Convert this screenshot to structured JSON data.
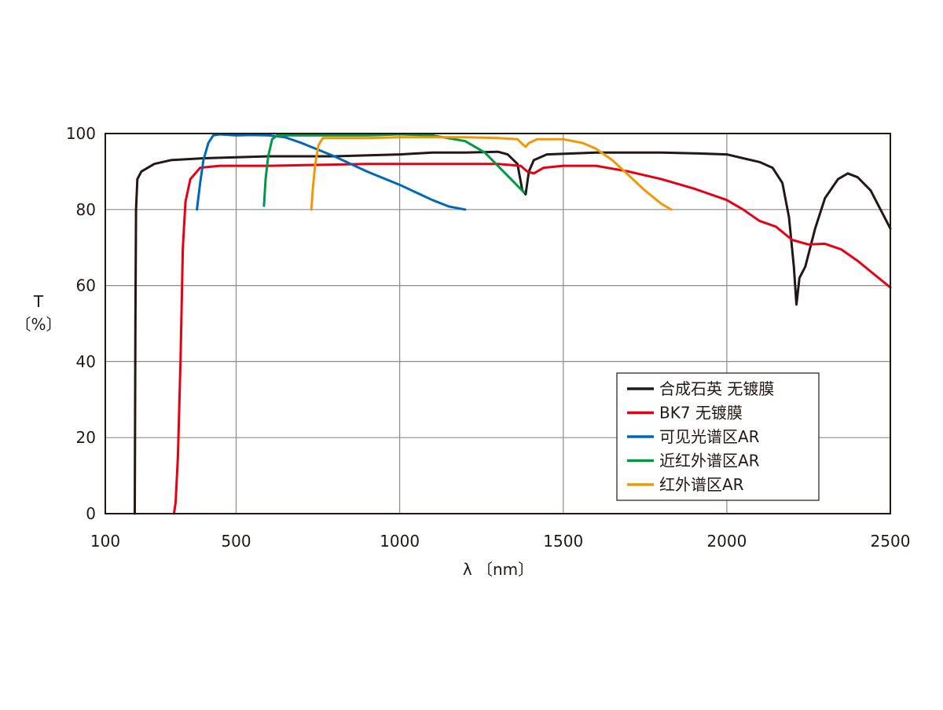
{
  "chart_data": {
    "type": "line",
    "title": "",
    "xlabel": "λ 〔nm〕",
    "ylabel_top": "T",
    "ylabel_bottom": "〔%〕",
    "xlim": [
      100,
      2500
    ],
    "ylim": [
      0,
      100
    ],
    "x_ticks": [
      100,
      500,
      1000,
      1500,
      2000,
      2500
    ],
    "y_ticks": [
      0,
      20,
      40,
      60,
      80,
      100
    ],
    "grid": true,
    "legend_position": "lower-right",
    "series": [
      {
        "name": "合成石英 无镀膜",
        "color": "#231815",
        "points": [
          [
            190,
            0
          ],
          [
            192,
            50
          ],
          [
            194,
            80
          ],
          [
            198,
            88
          ],
          [
            210,
            90
          ],
          [
            250,
            92
          ],
          [
            300,
            93
          ],
          [
            400,
            93.5
          ],
          [
            600,
            94
          ],
          [
            800,
            94
          ],
          [
            1000,
            94.5
          ],
          [
            1100,
            95
          ],
          [
            1200,
            95
          ],
          [
            1300,
            95.2
          ],
          [
            1330,
            94.5
          ],
          [
            1360,
            92
          ],
          [
            1375,
            85
          ],
          [
            1385,
            84
          ],
          [
            1395,
            90
          ],
          [
            1410,
            93
          ],
          [
            1450,
            94.5
          ],
          [
            1600,
            95
          ],
          [
            1800,
            95
          ],
          [
            1900,
            94.8
          ],
          [
            2000,
            94.5
          ],
          [
            2050,
            93.5
          ],
          [
            2100,
            92.5
          ],
          [
            2140,
            91
          ],
          [
            2170,
            87
          ],
          [
            2190,
            78
          ],
          [
            2205,
            65
          ],
          [
            2213,
            55
          ],
          [
            2222,
            62
          ],
          [
            2240,
            65
          ],
          [
            2270,
            75
          ],
          [
            2300,
            83
          ],
          [
            2340,
            88
          ],
          [
            2370,
            89.5
          ],
          [
            2400,
            88.5
          ],
          [
            2440,
            85
          ],
          [
            2470,
            80
          ],
          [
            2500,
            75
          ]
        ]
      },
      {
        "name": "BK7 无镀膜",
        "color": "#e60012",
        "points": [
          [
            310,
            0
          ],
          [
            315,
            3
          ],
          [
            322,
            15
          ],
          [
            330,
            40
          ],
          [
            337,
            70
          ],
          [
            345,
            82
          ],
          [
            360,
            88
          ],
          [
            390,
            91
          ],
          [
            450,
            91.5
          ],
          [
            600,
            91.5
          ],
          [
            900,
            92
          ],
          [
            1100,
            92
          ],
          [
            1300,
            92
          ],
          [
            1370,
            91.5
          ],
          [
            1390,
            90
          ],
          [
            1410,
            89.5
          ],
          [
            1440,
            91
          ],
          [
            1500,
            91.5
          ],
          [
            1600,
            91.5
          ],
          [
            1700,
            90
          ],
          [
            1800,
            88
          ],
          [
            1900,
            85.5
          ],
          [
            2000,
            82.5
          ],
          [
            2050,
            80
          ],
          [
            2100,
            77
          ],
          [
            2150,
            75.5
          ],
          [
            2200,
            72
          ],
          [
            2250,
            70.8
          ],
          [
            2300,
            71
          ],
          [
            2350,
            69.5
          ],
          [
            2400,
            66.5
          ],
          [
            2450,
            63
          ],
          [
            2500,
            59.5
          ]
        ]
      },
      {
        "name": "可见光谱区AR",
        "color": "#0068b7",
        "points": [
          [
            380,
            80
          ],
          [
            390,
            87
          ],
          [
            400,
            93
          ],
          [
            415,
            97.5
          ],
          [
            430,
            99.5
          ],
          [
            450,
            99.8
          ],
          [
            500,
            99.5
          ],
          [
            550,
            99.6
          ],
          [
            600,
            99.5
          ],
          [
            650,
            99
          ],
          [
            700,
            97.5
          ],
          [
            800,
            94
          ],
          [
            900,
            90
          ],
          [
            1000,
            86.5
          ],
          [
            1050,
            84.5
          ],
          [
            1100,
            82.5
          ],
          [
            1150,
            80.8
          ],
          [
            1200,
            80
          ]
        ]
      },
      {
        "name": "近红外谱区AR",
        "color": "#009944",
        "points": [
          [
            585,
            81
          ],
          [
            590,
            88
          ],
          [
            598,
            94
          ],
          [
            610,
            98.5
          ],
          [
            625,
            99.5
          ],
          [
            700,
            99.5
          ],
          [
            800,
            99.5
          ],
          [
            900,
            99.5
          ],
          [
            1000,
            99.8
          ],
          [
            1100,
            99.5
          ],
          [
            1200,
            98
          ],
          [
            1260,
            95
          ],
          [
            1300,
            91.5
          ],
          [
            1340,
            88
          ],
          [
            1380,
            84.5
          ]
        ]
      },
      {
        "name": "红外谱区AR",
        "color": "#f39800",
        "points": [
          [
            730,
            80
          ],
          [
            735,
            86
          ],
          [
            742,
            92
          ],
          [
            752,
            97
          ],
          [
            765,
            98.8
          ],
          [
            800,
            98.8
          ],
          [
            900,
            98.8
          ],
          [
            1000,
            99
          ],
          [
            1100,
            99
          ],
          [
            1200,
            99
          ],
          [
            1300,
            98.8
          ],
          [
            1360,
            98.5
          ],
          [
            1378,
            97
          ],
          [
            1385,
            96.5
          ],
          [
            1395,
            97.5
          ],
          [
            1420,
            98.5
          ],
          [
            1500,
            98.5
          ],
          [
            1560,
            97.5
          ],
          [
            1600,
            96
          ],
          [
            1650,
            93
          ],
          [
            1700,
            89
          ],
          [
            1750,
            85
          ],
          [
            1800,
            81.5
          ],
          [
            1830,
            80
          ]
        ]
      }
    ]
  }
}
